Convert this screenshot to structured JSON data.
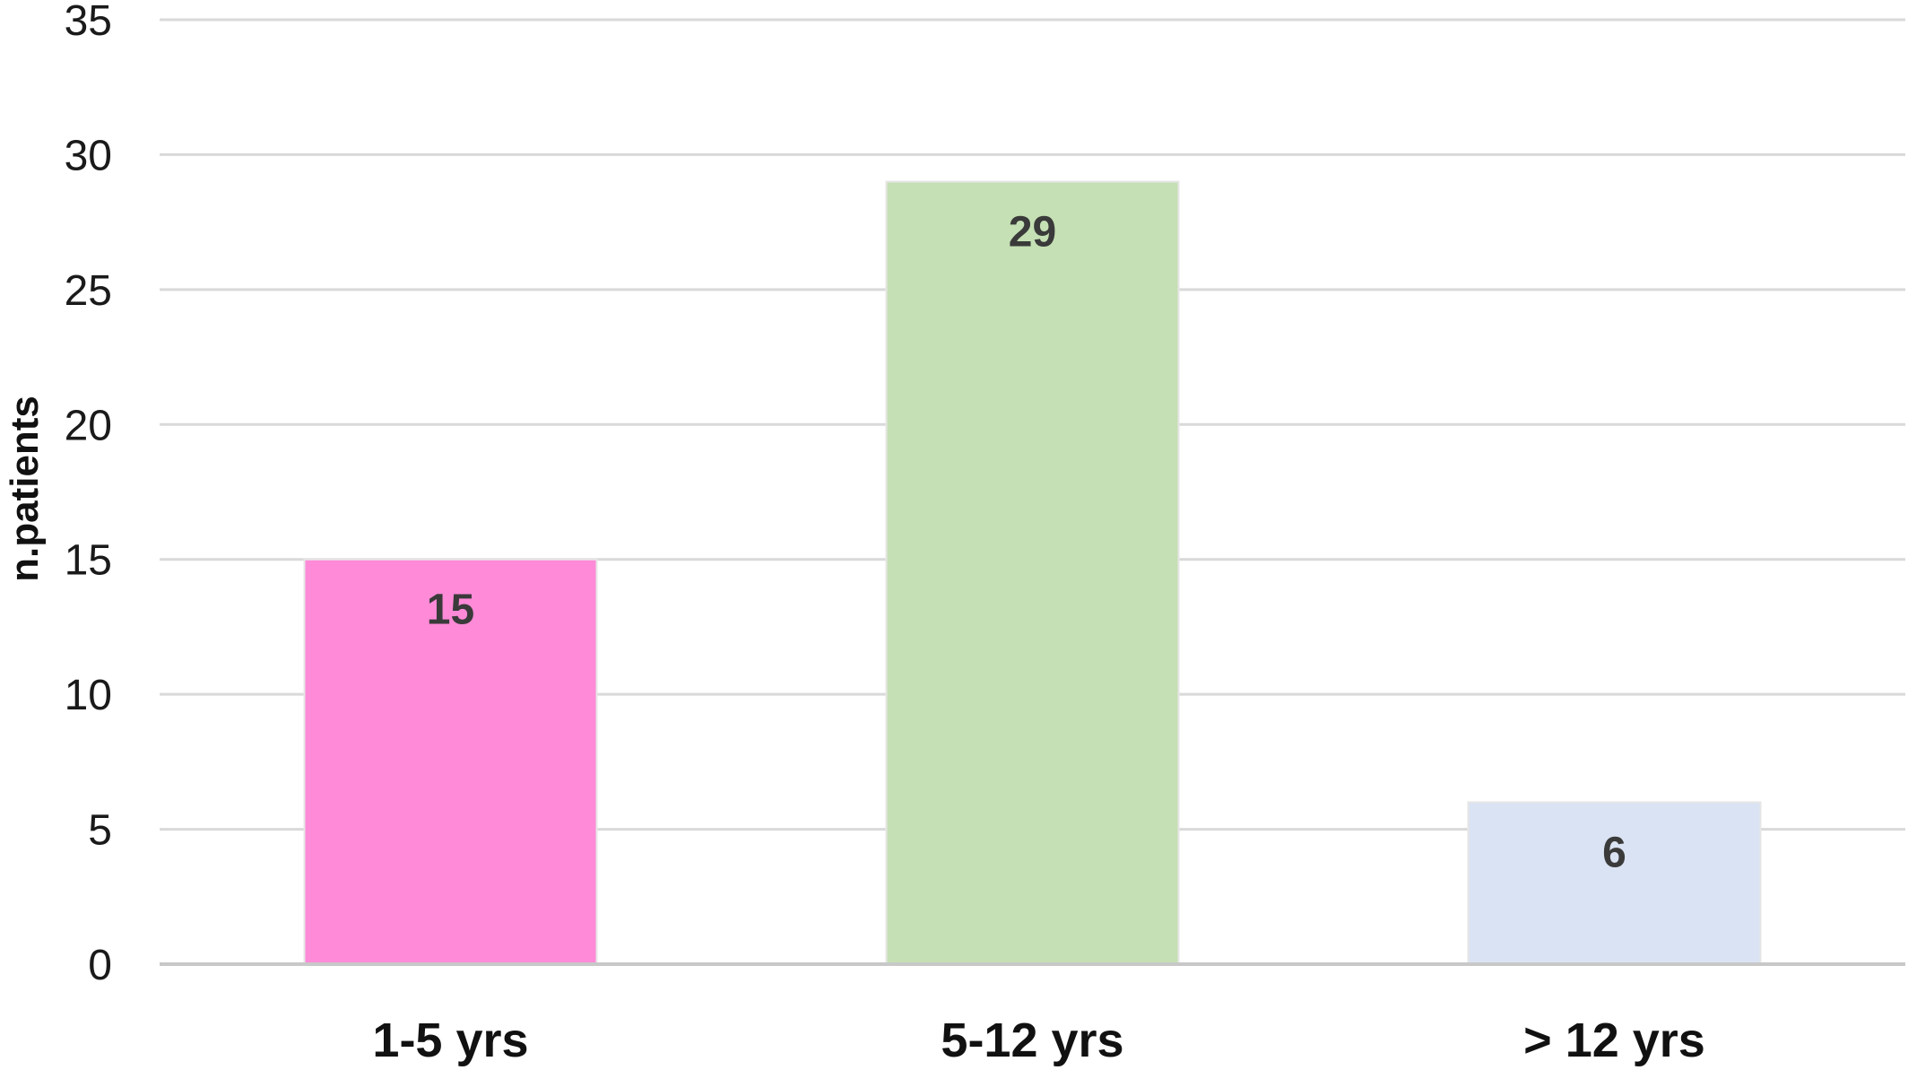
{
  "chart_data": {
    "type": "bar",
    "categories": [
      "1-5 yrs",
      "5-12 yrs",
      "> 12 yrs"
    ],
    "values": [
      15,
      29,
      6
    ],
    "data_labels": [
      "15",
      "29",
      "6"
    ],
    "bar_colors": [
      "#ff8ad8",
      "#c5e0b4",
      "#dae3f3"
    ],
    "title": "",
    "xlabel": "",
    "ylabel": "n.patients",
    "ylim": [
      0,
      35
    ],
    "yticks": [
      0,
      5,
      10,
      15,
      20,
      25,
      30,
      35
    ],
    "ytick_labels": [
      "0",
      "5",
      "10",
      "15",
      "20",
      "25",
      "30",
      "35"
    ],
    "grid": true,
    "legend": "none"
  }
}
